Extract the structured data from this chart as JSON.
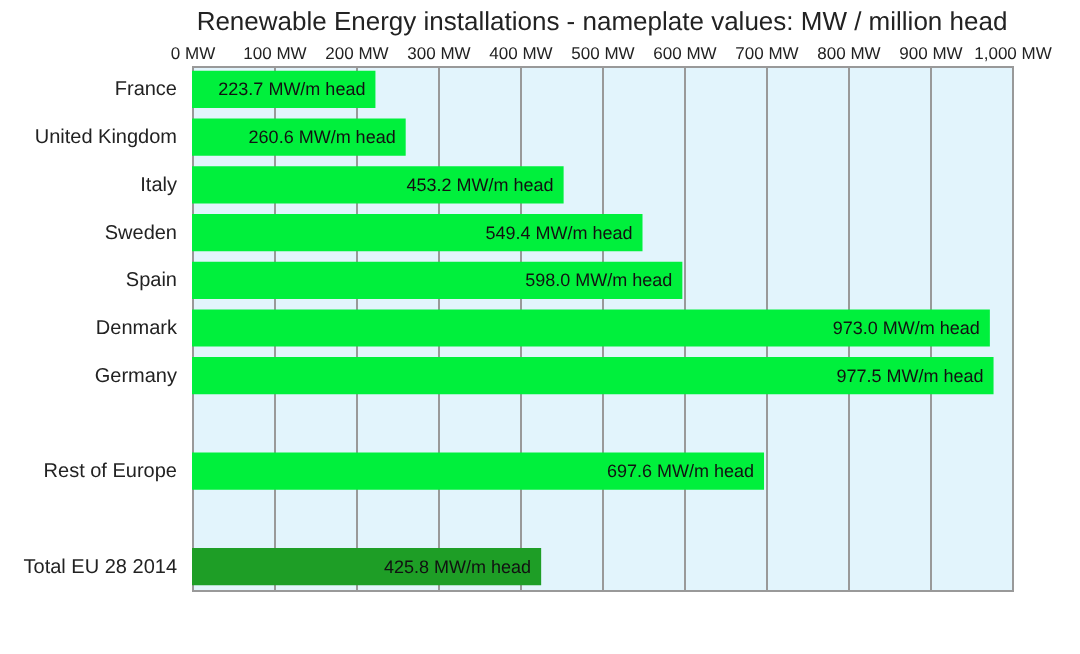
{
  "chart_data": {
    "type": "bar",
    "orientation": "horizontal",
    "title": "Renewable Energy installations - nameplate values:  MW / million head",
    "categories": [
      "France",
      "United Kingdom",
      "Italy",
      "Sweden",
      "Spain",
      "Denmark",
      "Germany",
      null,
      "Rest of Europe",
      null,
      "Total  EU 28  2014"
    ],
    "values": [
      223.7,
      260.6,
      453.2,
      549.4,
      598.0,
      973.0,
      977.5,
      null,
      697.6,
      null,
      425.8
    ],
    "colors": [
      "#00f03c",
      "#00f03c",
      "#00f03c",
      "#00f03c",
      "#00f03c",
      "#00f03c",
      "#00f03c",
      null,
      "#00f03c",
      null,
      "#1e9e26"
    ],
    "value_labels": [
      "223.7 MW/m head",
      "260.6 MW/m head",
      "453.2 MW/m head",
      "549.4 MW/m head",
      "598.0 MW/m head",
      "973.0 MW/m head",
      "977.5 MW/m head",
      null,
      "697.6 MW/m head",
      null,
      "425.8 MW/m head"
    ],
    "xlim": [
      0,
      1000
    ],
    "xticks": [
      {
        "value": 0,
        "label": "0 MW"
      },
      {
        "value": 100,
        "label": "100 MW"
      },
      {
        "value": 200,
        "label": "200 MW"
      },
      {
        "value": 300,
        "label": "300 MW"
      },
      {
        "value": 400,
        "label": "400 MW"
      },
      {
        "value": 500,
        "label": "500 MW"
      },
      {
        "value": 600,
        "label": "600 MW"
      },
      {
        "value": 700,
        "label": "700 MW"
      },
      {
        "value": 800,
        "label": "800 MW"
      },
      {
        "value": 900,
        "label": "900 MW"
      },
      {
        "value": 1000,
        "label": "1,000 MW"
      }
    ],
    "grid": "x"
  }
}
